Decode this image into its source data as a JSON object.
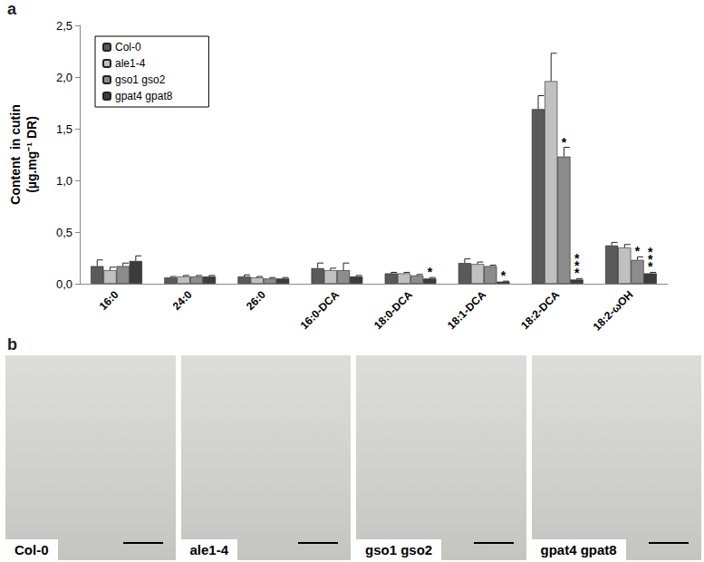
{
  "panel_labels": [
    "a",
    "b"
  ],
  "chart_data": {
    "type": "bar",
    "y_label": "Content  in cutin\n(µg.mg⁻¹ DR)",
    "categories": [
      "16:0",
      "24:0",
      "26:0",
      "16:0-DCA",
      "18:0-DCA",
      "18:1-DCA",
      "18:2-DCA",
      "18:2-ωOH"
    ],
    "series": [
      {
        "name": "Col-0",
        "color": "#5a5a5a",
        "values": [
          0.17,
          0.06,
          0.07,
          0.15,
          0.1,
          0.2,
          1.69,
          0.37
        ],
        "errors": [
          0.06,
          0.01,
          0.015,
          0.05,
          0.01,
          0.04,
          0.13,
          0.03
        ],
        "significance": [
          null,
          null,
          null,
          null,
          null,
          null,
          null,
          null
        ]
      },
      {
        "name": "ale1-4",
        "color": "#c0c0c0",
        "values": [
          0.13,
          0.07,
          0.06,
          0.13,
          0.1,
          0.19,
          1.96,
          0.35
        ],
        "errors": [
          0.03,
          0.01,
          0.01,
          0.02,
          0.01,
          0.02,
          0.27,
          0.03
        ],
        "significance": [
          null,
          null,
          null,
          null,
          null,
          null,
          null,
          null
        ]
      },
      {
        "name": "gso1 gso2",
        "color": "#8c8c8c",
        "values": [
          0.17,
          0.07,
          0.05,
          0.13,
          0.08,
          0.17,
          1.23,
          0.23
        ],
        "errors": [
          0.03,
          0.01,
          0.01,
          0.07,
          0.01,
          0.01,
          0.09,
          0.03
        ],
        "significance": [
          null,
          null,
          null,
          null,
          null,
          null,
          "*",
          "*"
        ]
      },
      {
        "name": "gpat4 gpat8",
        "color": "#3c3c3c",
        "values": [
          0.22,
          0.07,
          0.05,
          0.07,
          0.05,
          0.02,
          0.04,
          0.1
        ],
        "errors": [
          0.05,
          0.01,
          0.01,
          0.01,
          0.01,
          0.005,
          0.01,
          0.01
        ],
        "significance": [
          null,
          null,
          null,
          null,
          "*",
          "*",
          "***",
          "***"
        ]
      }
    ],
    "ylim": [
      0,
      2.5
    ],
    "yticks": [
      {
        "value": 0,
        "label": "0,0"
      },
      {
        "value": 0.5,
        "label": "0,5"
      },
      {
        "value": 1,
        "label": "1,0"
      },
      {
        "value": 1.5,
        "label": "1,5"
      },
      {
        "value": 2,
        "label": "2,0"
      },
      {
        "value": 2.5,
        "label": "2,5"
      }
    ],
    "grid": false,
    "legend": "upper left"
  },
  "photos": [
    {
      "label": "Col-0"
    },
    {
      "label": "ale1-4"
    },
    {
      "label": "gso1 gso2"
    },
    {
      "label": "gpat4 gpat8"
    }
  ]
}
